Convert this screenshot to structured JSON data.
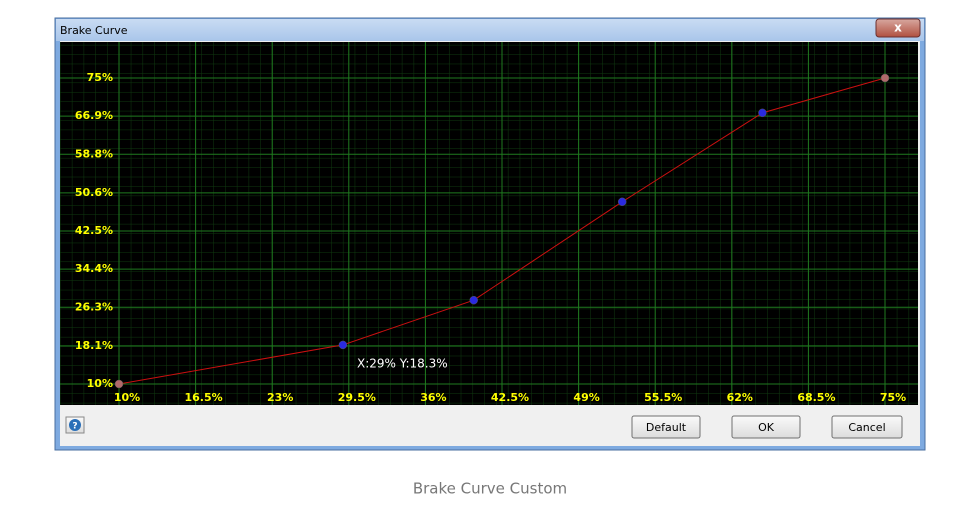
{
  "window": {
    "title": "Brake Curve",
    "close": "x",
    "help": "?",
    "buttons": [
      "Default",
      "OK",
      "Cancel"
    ]
  },
  "caption": "Brake Curve Custom",
  "chart_data": {
    "type": "line",
    "x": [
      10,
      29,
      40.1,
      52.7,
      64.6,
      75
    ],
    "values": [
      10,
      18.3,
      27.8,
      48.7,
      67.6,
      75
    ],
    "color": "#cc1010",
    "point_colors": [
      "#b06a6a",
      "#2a2ae0",
      "#2a2ae0",
      "#2a2ae0",
      "#2a2ae0",
      "#b06a6a"
    ],
    "annotation": "X:29% Y:18.3%",
    "xlim": [
      10,
      75
    ],
    "ylim": [
      10,
      75
    ],
    "xticks": [
      {
        "value": 10,
        "label": "10%"
      },
      {
        "value": 16.5,
        "label": "16.5%"
      },
      {
        "value": 23,
        "label": "23%"
      },
      {
        "value": 29.5,
        "label": "29.5%"
      },
      {
        "value": 36,
        "label": "36%"
      },
      {
        "value": 42.5,
        "label": "42.5%"
      },
      {
        "value": 49,
        "label": "49%"
      },
      {
        "value": 55.5,
        "label": "55.5%"
      },
      {
        "value": 62,
        "label": "62%"
      },
      {
        "value": 68.5,
        "label": "68.5%"
      },
      {
        "value": 75,
        "label": "75%"
      }
    ],
    "yticks": [
      {
        "value": 10,
        "label": "10%"
      },
      {
        "value": 18.1,
        "label": "18.1%"
      },
      {
        "value": 26.3,
        "label": "26.3%"
      },
      {
        "value": 34.4,
        "label": "34.4%"
      },
      {
        "value": 42.5,
        "label": "42.5%"
      },
      {
        "value": 50.6,
        "label": "50.6%"
      },
      {
        "value": 58.8,
        "label": "58.8%"
      },
      {
        "value": 66.9,
        "label": "66.9%"
      },
      {
        "value": 75,
        "label": "75%"
      }
    ],
    "grid": true
  }
}
